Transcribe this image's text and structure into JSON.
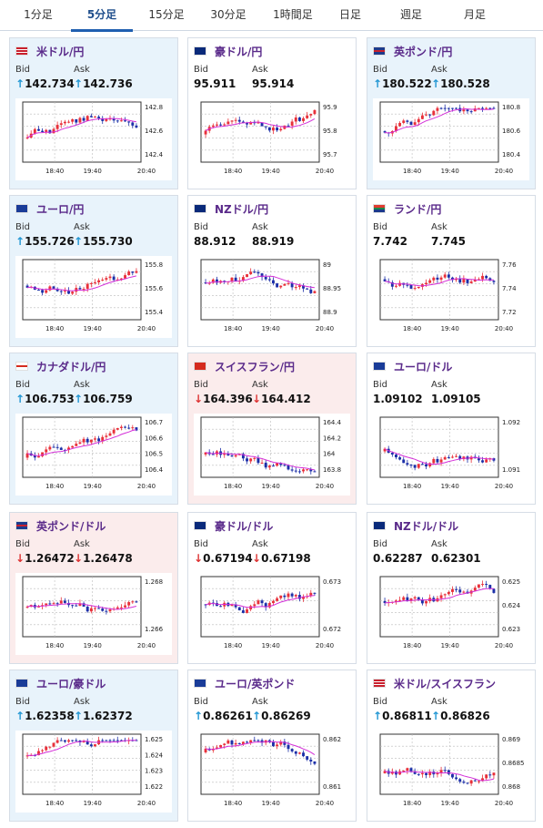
{
  "tabs": [
    {
      "label": "1分足",
      "active": false
    },
    {
      "label": "5分足",
      "active": true
    },
    {
      "label": "15分足",
      "active": false
    },
    {
      "label": "30分足",
      "active": false
    },
    {
      "label": "1時間足",
      "active": false
    },
    {
      "label": "日足",
      "active": false
    },
    {
      "label": "週足",
      "active": false
    },
    {
      "label": "月足",
      "active": false
    }
  ],
  "labels": {
    "bid": "Bid",
    "ask": "Ask"
  },
  "colors": {
    "up_bg": "#e8f3fb",
    "down_bg": "#fbecec",
    "candle_up": "#e8303a",
    "candle_down": "#1c2fa8",
    "ma": "#d42ed8",
    "arrow_up": "#2196d3",
    "arrow_down": "#d33"
  },
  "cards": [
    {
      "pair": "米ドル/円",
      "flag": "us-flag",
      "state": "up",
      "arrow": "↑",
      "bid": "142.734",
      "ask": "142.736",
      "xticks": [
        "18:40",
        "19:40",
        "20:40"
      ],
      "yticks": [
        "142.8",
        "142.6",
        "142.4"
      ]
    },
    {
      "pair": "豪ドル/円",
      "flag": "au-flag",
      "state": "none",
      "arrow": "",
      "bid": "95.911",
      "ask": "95.914",
      "xticks": [
        "18:40",
        "19:40",
        "20:40"
      ],
      "yticks": [
        "95.9",
        "95.8",
        "95.7"
      ]
    },
    {
      "pair": "英ポンド/円",
      "flag": "gb-flag",
      "state": "up",
      "arrow": "↑",
      "bid": "180.522",
      "ask": "180.528",
      "xticks": [
        "18:40",
        "19:40",
        "20:40"
      ],
      "yticks": [
        "180.8",
        "180.6",
        "180.4"
      ]
    },
    {
      "pair": "ユーロ/円",
      "flag": "eu-flag",
      "state": "up",
      "arrow": "↑",
      "bid": "155.726",
      "ask": "155.730",
      "xticks": [
        "18:40",
        "19:40",
        "20:40"
      ],
      "yticks": [
        "155.8",
        "155.6",
        "155.4"
      ]
    },
    {
      "pair": "NZドル/円",
      "flag": "nz-flag",
      "state": "none",
      "arrow": "",
      "bid": "88.912",
      "ask": "88.919",
      "xticks": [
        "18:40",
        "19:40",
        "20:40"
      ],
      "yticks": [
        "89",
        "88.95",
        "88.9"
      ]
    },
    {
      "pair": "ランド/円",
      "flag": "za-flag",
      "state": "none",
      "arrow": "",
      "bid": "7.742",
      "ask": "7.745",
      "xticks": [
        "18:40",
        "19:40",
        "20:40"
      ],
      "yticks": [
        "7.76",
        "7.74",
        "7.72"
      ]
    },
    {
      "pair": "カナダドル/円",
      "flag": "ca-flag",
      "state": "up",
      "arrow": "↑",
      "bid": "106.753",
      "ask": "106.759",
      "xticks": [
        "18:40",
        "19:40",
        "20:40"
      ],
      "yticks": [
        "106.7",
        "106.6",
        "106.5",
        "106.4"
      ]
    },
    {
      "pair": "スイスフラン/円",
      "flag": "ch-flag",
      "state": "down",
      "arrow": "↓",
      "bid": "164.396",
      "ask": "164.412",
      "xticks": [
        "18:40",
        "19:40",
        "20:40"
      ],
      "yticks": [
        "164.4",
        "164.2",
        "164",
        "163.8"
      ]
    },
    {
      "pair": "ユーロ/ドル",
      "flag": "eu-flag",
      "state": "none",
      "arrow": "",
      "bid": "1.09102",
      "ask": "1.09105",
      "xticks": [
        "18:40",
        "19:40",
        "20:40"
      ],
      "yticks": [
        "1.092",
        "1.091"
      ]
    },
    {
      "pair": "英ポンド/ドル",
      "flag": "gb-flag",
      "state": "down",
      "arrow": "↓",
      "bid": "1.26472",
      "ask": "1.26478",
      "xticks": [
        "18:40",
        "19:40",
        "20:40"
      ],
      "yticks": [
        "1.268",
        "1.266"
      ]
    },
    {
      "pair": "豪ドル/ドル",
      "flag": "au-flag",
      "state": "none",
      "arrow": "↓",
      "bid": "0.67194",
      "ask": "0.67198",
      "xticks": [
        "18:40",
        "19:40",
        "20:40"
      ],
      "yticks": [
        "0.673",
        "0.672"
      ]
    },
    {
      "pair": "NZドル/ドル",
      "flag": "nz-flag",
      "state": "none",
      "arrow": "",
      "bid": "0.62287",
      "ask": "0.62301",
      "xticks": [
        "18:40",
        "19:40",
        "20:40"
      ],
      "yticks": [
        "0.625",
        "0.624",
        "0.623"
      ]
    },
    {
      "pair": "ユーロ/豪ドル",
      "flag": "eu-flag",
      "state": "up",
      "arrow": "↑",
      "bid": "1.62358",
      "ask": "1.62372",
      "xticks": [
        "18:40",
        "19:40",
        "20:40"
      ],
      "yticks": [
        "1.625",
        "1.624",
        "1.623",
        "1.622"
      ]
    },
    {
      "pair": "ユーロ/英ポンド",
      "flag": "eu-flag",
      "state": "none",
      "arrow": "↑",
      "bid": "0.86261",
      "ask": "0.86269",
      "xticks": [
        "18:40",
        "19:40",
        "20:40"
      ],
      "yticks": [
        "0.862",
        "0.861"
      ]
    },
    {
      "pair": "米ドル/スイスフラン",
      "flag": "us-flag",
      "state": "none",
      "arrow": "↑",
      "bid": "0.86811",
      "ask": "0.86826",
      "xticks": [
        "18:40",
        "19:40",
        "20:40"
      ],
      "yticks": [
        "0.869",
        "0.8685",
        "0.868"
      ]
    }
  ]
}
